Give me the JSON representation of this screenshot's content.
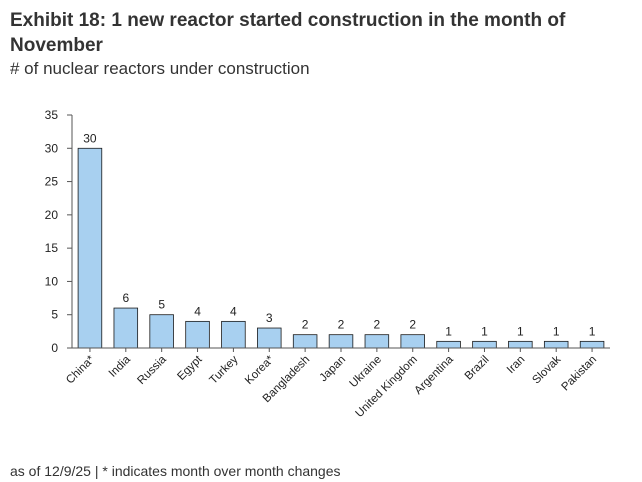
{
  "header": {
    "title": "Exhibit 18: 1 new reactor started construction in the month of November",
    "subtitle": "# of nuclear reactors under construction"
  },
  "footer": {
    "note": "as of 12/9/25 | * indicates month over month changes"
  },
  "colors": {
    "bar_fill": "#a8d0f0",
    "bar_stroke": "#1a1a1a",
    "axis": "#555555"
  },
  "chart_data": {
    "type": "bar",
    "title": "Exhibit 18: 1 new reactor started construction in the month of November",
    "subtitle": "# of nuclear reactors under construction",
    "xlabel": "",
    "ylabel": "",
    "ylim": [
      0,
      35
    ],
    "yticks": [
      0,
      5,
      10,
      15,
      20,
      25,
      30,
      35
    ],
    "grid": false,
    "categories": [
      "China*",
      "India",
      "Russia",
      "Egypt",
      "Turkey",
      "Korea*",
      "Bangladesh",
      "Japan",
      "Ukraine",
      "United Kingdom",
      "Argentina",
      "Brazil",
      "Iran",
      "Slovak",
      "Pakistan"
    ],
    "values": [
      30,
      6,
      5,
      4,
      4,
      3,
      2,
      2,
      2,
      2,
      1,
      1,
      1,
      1,
      1
    ]
  }
}
